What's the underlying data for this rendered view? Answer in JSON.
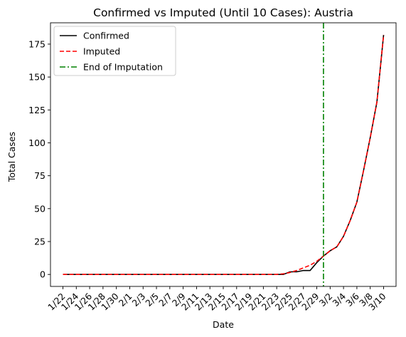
{
  "chart_data": {
    "type": "line",
    "title": "Confirmed vs Imputed (Until 10 Cases): Austria",
    "xlabel": "Date",
    "ylabel": "Total Cases",
    "ylim": [
      -9.1,
      191.2
    ],
    "yticks": [
      0,
      25,
      50,
      75,
      100,
      125,
      150,
      175
    ],
    "x": [
      "1/22",
      "1/23",
      "1/24",
      "1/25",
      "1/26",
      "1/27",
      "1/28",
      "1/29",
      "1/30",
      "1/31",
      "2/1",
      "2/2",
      "2/3",
      "2/4",
      "2/5",
      "2/6",
      "2/7",
      "2/8",
      "2/9",
      "2/10",
      "2/11",
      "2/12",
      "2/13",
      "2/14",
      "2/15",
      "2/16",
      "2/17",
      "2/18",
      "2/19",
      "2/20",
      "2/21",
      "2/22",
      "2/23",
      "2/24",
      "2/25",
      "2/26",
      "2/27",
      "2/28",
      "2/29",
      "3/1",
      "3/2",
      "3/3",
      "3/4",
      "3/5",
      "3/6",
      "3/7",
      "3/8",
      "3/9",
      "3/10"
    ],
    "xtick_labels": [
      "1/22",
      "1/24",
      "1/26",
      "1/28",
      "1/30",
      "2/1",
      "2/3",
      "2/5",
      "2/7",
      "2/9",
      "2/11",
      "2/13",
      "2/15",
      "2/17",
      "2/19",
      "2/21",
      "2/23",
      "2/25",
      "2/27",
      "2/29",
      "3/2",
      "3/4",
      "3/6",
      "3/8",
      "3/10"
    ],
    "series": [
      {
        "name": "Confirmed",
        "color": "#000000",
        "style": "solid",
        "values": [
          0,
          0,
          0,
          0,
          0,
          0,
          0,
          0,
          0,
          0,
          0,
          0,
          0,
          0,
          0,
          0,
          0,
          0,
          0,
          0,
          0,
          0,
          0,
          0,
          0,
          0,
          0,
          0,
          0,
          0,
          0,
          0,
          0,
          0,
          2,
          2,
          3,
          3,
          9,
          14,
          18,
          21,
          29,
          41,
          55,
          79,
          104,
          131,
          182
        ]
      },
      {
        "name": "Imputed",
        "color": "#ff0000",
        "style": "dashed",
        "values": [
          0,
          0,
          0,
          0,
          0,
          0,
          0,
          0,
          0,
          0,
          0,
          0,
          0,
          0,
          0,
          0,
          0,
          0,
          0,
          0,
          0,
          0,
          0,
          0,
          0,
          0,
          0,
          0,
          0,
          0,
          0,
          0,
          0,
          0.5,
          1.5,
          3,
          5,
          7,
          10,
          14,
          18,
          21,
          29,
          41,
          55,
          79,
          104,
          131,
          182
        ]
      }
    ],
    "vline": {
      "name": "End of Imputation",
      "x": "3/1",
      "color": "#008000",
      "style": "dashdot"
    },
    "legend": "top-left",
    "grid": false
  }
}
